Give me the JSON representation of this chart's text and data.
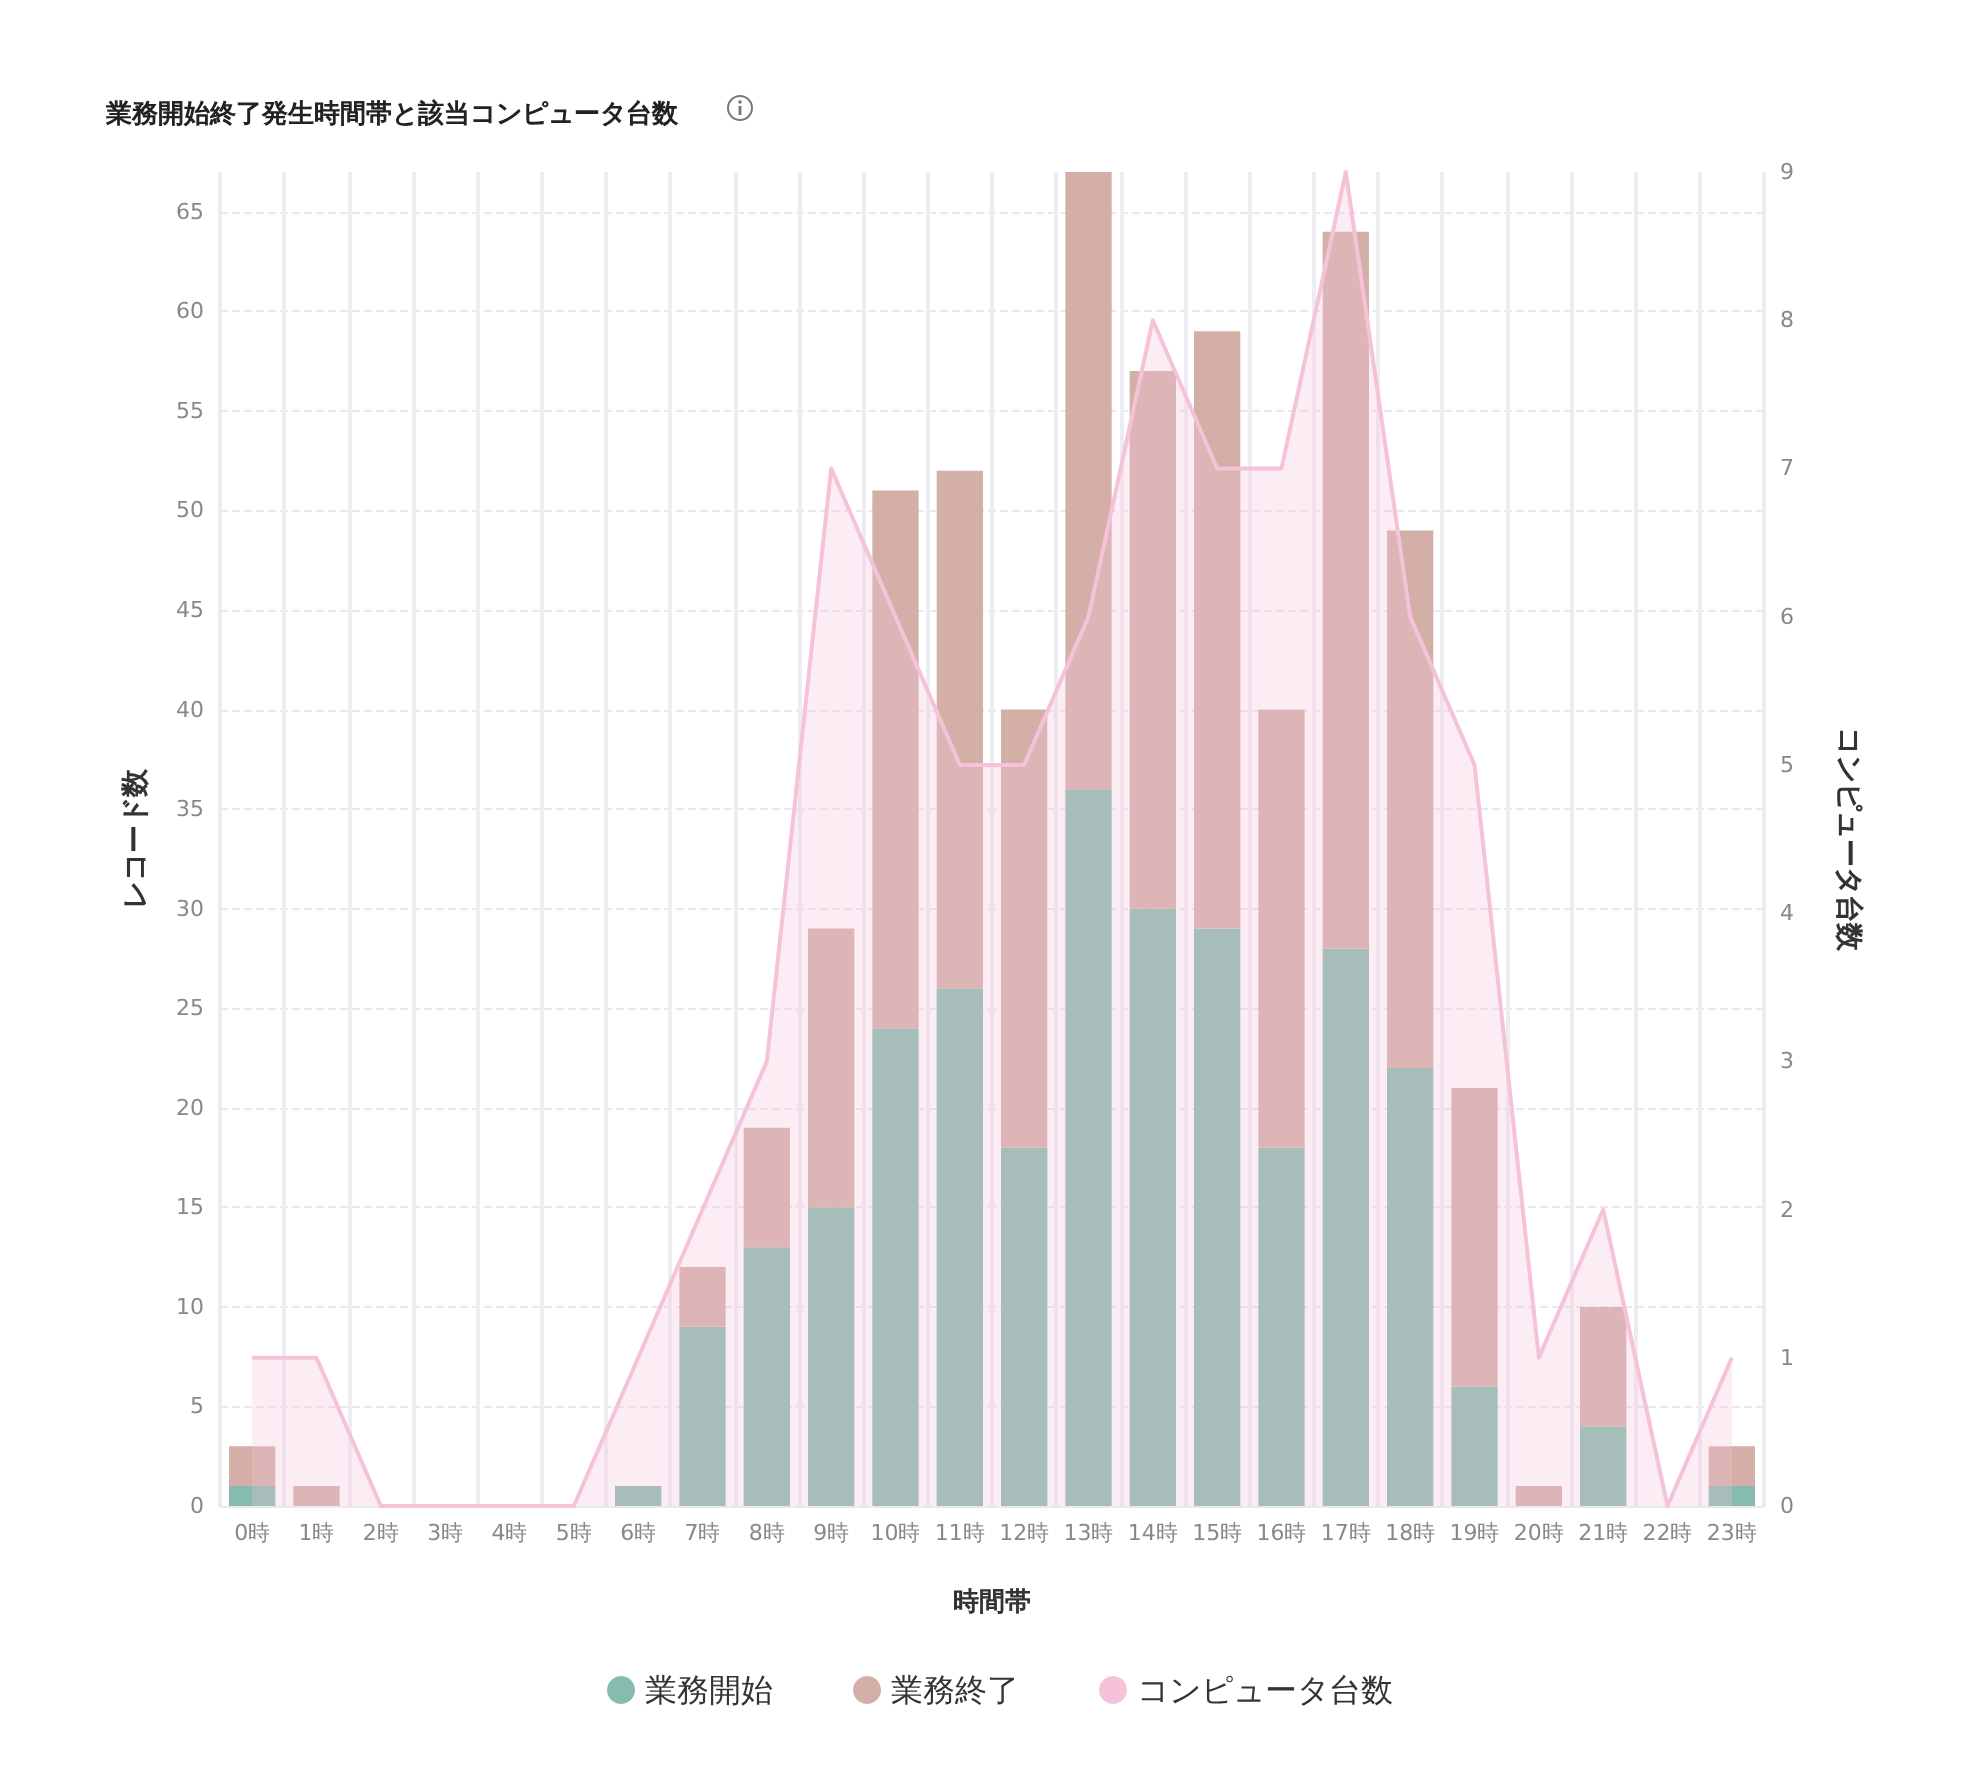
{
  "chart_data": {
    "type": "bar",
    "title": "業務開始終了発生時間帯と該当コンピュータ台数",
    "xlabel": "時間帯",
    "ylabel": "レコード数",
    "y2label": "コンピュータ台数",
    "categories": [
      "0時",
      "1時",
      "2時",
      "3時",
      "4時",
      "5時",
      "6時",
      "7時",
      "8時",
      "9時",
      "10時",
      "11時",
      "12時",
      "13時",
      "14時",
      "15時",
      "16時",
      "17時",
      "18時",
      "19時",
      "20時",
      "21時",
      "22時",
      "23時"
    ],
    "stacked": true,
    "series": [
      {
        "name": "業務開始",
        "color": "#86bbad",
        "values": [
          1,
          0,
          0,
          0,
          0,
          0,
          1,
          9,
          13,
          15,
          24,
          26,
          18,
          36,
          30,
          29,
          18,
          28,
          22,
          6,
          0,
          4,
          0,
          1
        ]
      },
      {
        "name": "業務終了",
        "color": "#d4afa8",
        "values": [
          2,
          1,
          0,
          0,
          0,
          0,
          0,
          3,
          6,
          14,
          27,
          26,
          22,
          31,
          27,
          30,
          22,
          36,
          27,
          15,
          1,
          6,
          0,
          2
        ]
      },
      {
        "name": "コンピュータ台数",
        "type": "area",
        "axis": "y2",
        "color": "#f5c2da",
        "values": [
          1,
          1,
          0,
          0,
          0,
          0,
          1,
          2,
          3,
          7,
          6,
          5,
          5,
          6,
          8,
          7,
          7,
          9,
          6,
          5,
          1,
          2,
          0,
          1
        ]
      }
    ],
    "ylim": [
      0,
      67
    ],
    "yticks": [
      0,
      5,
      10,
      15,
      20,
      25,
      30,
      35,
      40,
      45,
      50,
      55,
      60,
      65
    ],
    "y2lim": [
      0,
      9
    ],
    "y2ticks": [
      0,
      1,
      2,
      3,
      4,
      5,
      6,
      7,
      8,
      9
    ],
    "grid": true,
    "legend": "bottom",
    "marker": "none"
  }
}
